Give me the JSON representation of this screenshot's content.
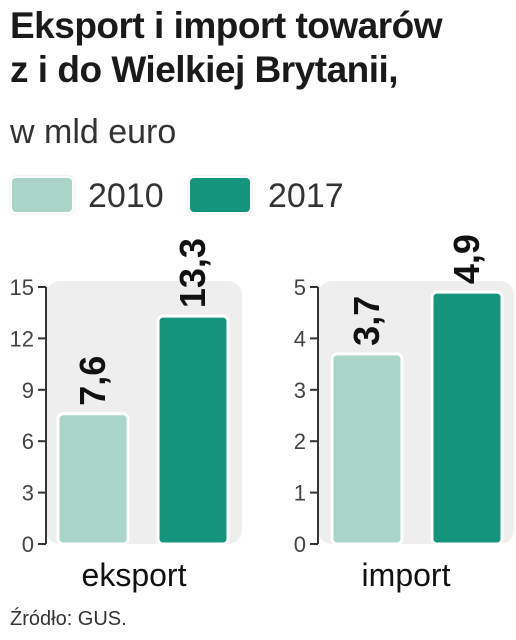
{
  "title_lines": [
    "Eksport i import towarów",
    "z i do Wielkiej Brytanii,"
  ],
  "subtitle": "w mld euro",
  "legend": [
    {
      "label": "2010",
      "color": "#a8d5c8"
    },
    {
      "label": "2017",
      "color": "#14957c"
    }
  ],
  "source": "Źródło: GUS.",
  "colors": {
    "panel": "#eeeeee",
    "axis": "#333333",
    "bar_outline": "#ffffff"
  },
  "chart_data": [
    {
      "type": "bar",
      "categories": [
        "eksport"
      ],
      "series": [
        {
          "name": "2010",
          "values": [
            7.6
          ],
          "labels": [
            "7,6"
          ]
        },
        {
          "name": "2017",
          "values": [
            13.3
          ],
          "labels": [
            "13,3"
          ]
        }
      ],
      "xlabel": "eksport",
      "ylim": [
        0,
        15
      ],
      "yticks": [
        0,
        3,
        6,
        9,
        12,
        15
      ]
    },
    {
      "type": "bar",
      "categories": [
        "import"
      ],
      "series": [
        {
          "name": "2010",
          "values": [
            3.7
          ],
          "labels": [
            "3,7"
          ]
        },
        {
          "name": "2017",
          "values": [
            4.9
          ],
          "labels": [
            "4,9"
          ]
        }
      ],
      "xlabel": "import",
      "ylim": [
        0,
        5
      ],
      "yticks": [
        0,
        1,
        2,
        3,
        4,
        5
      ]
    }
  ]
}
